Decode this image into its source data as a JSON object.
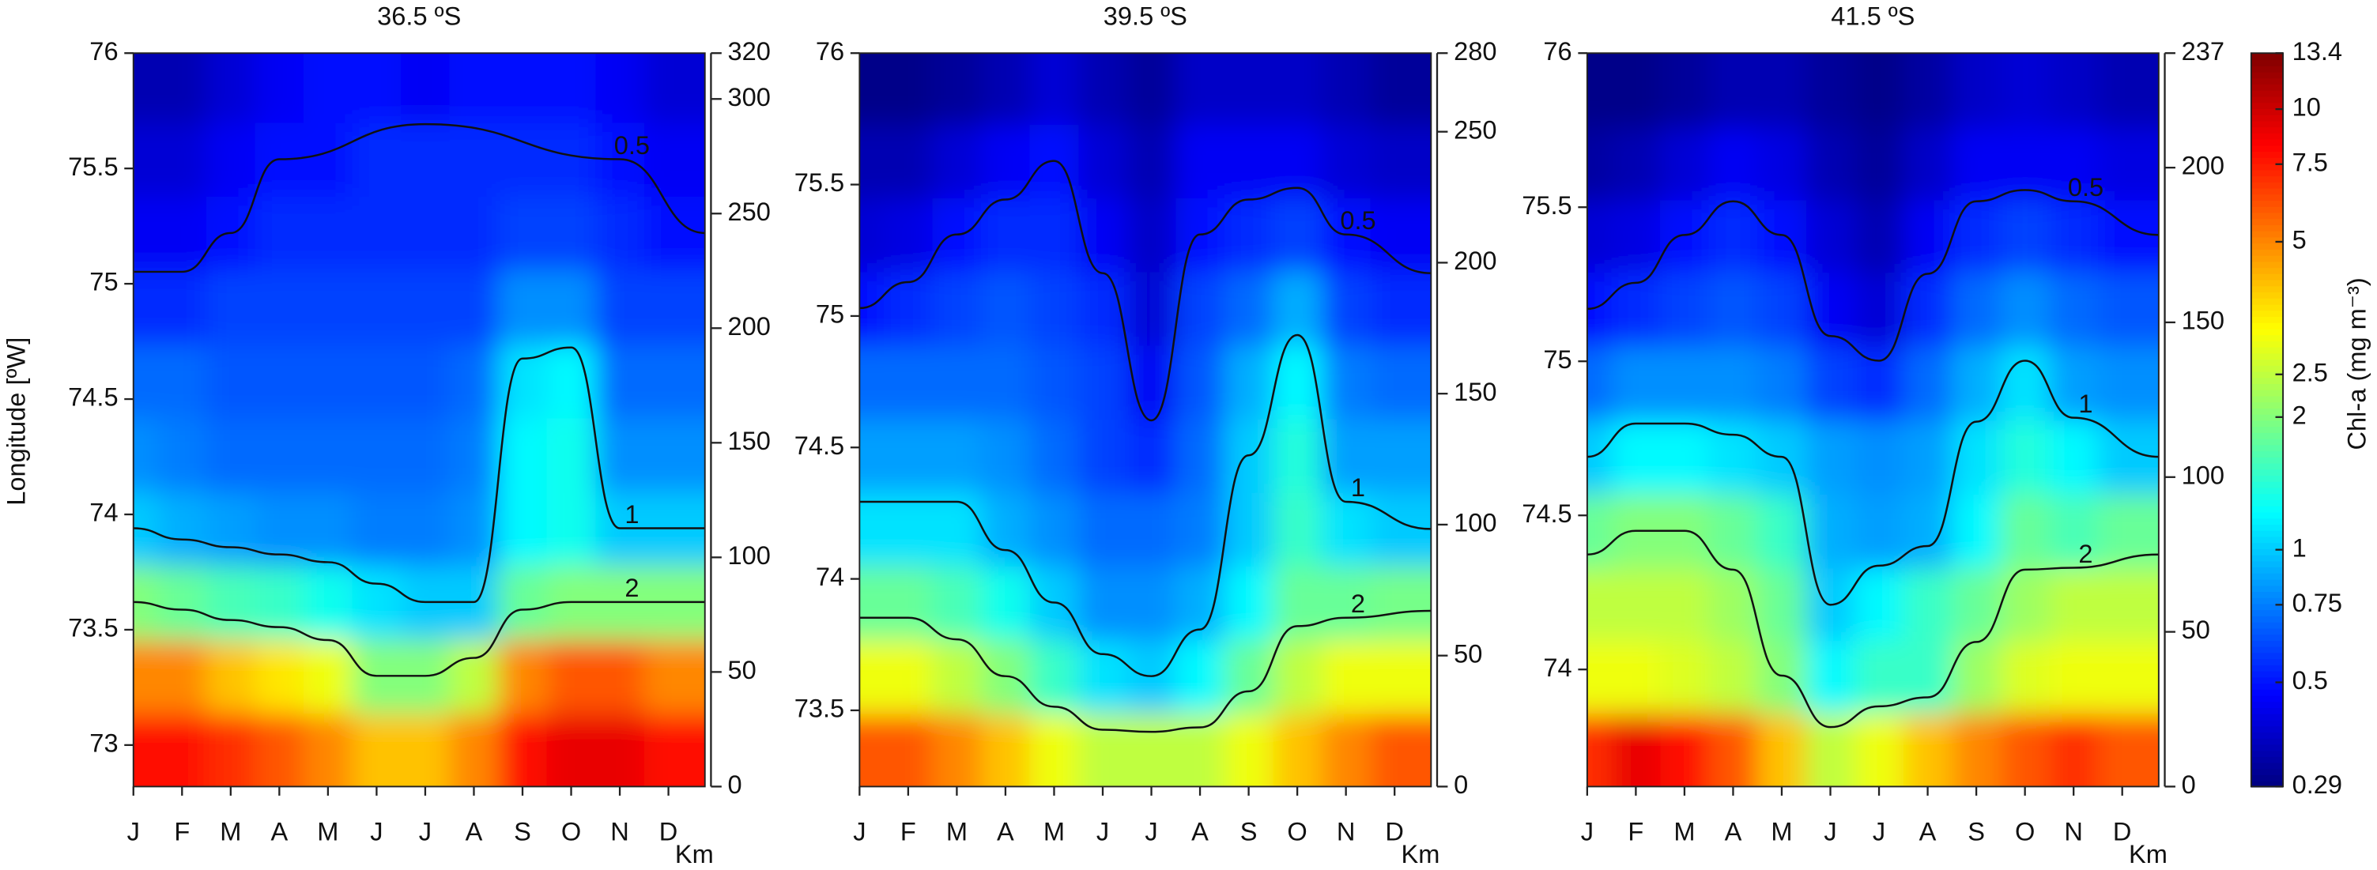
{
  "chart_data": [
    {
      "type": "heatmap",
      "title": "36.5 ºS",
      "ylabel": "Longitude [ºW]",
      "y2label": "Km",
      "categories": [
        "J",
        "F",
        "M",
        "A",
        "M",
        "J",
        "J",
        "A",
        "S",
        "O",
        "N",
        "D"
      ],
      "ylim": [
        72.82,
        76
      ],
      "yticks": [
        73,
        73.5,
        74,
        74.5,
        75,
        75.5,
        76
      ],
      "y2lim": [
        0,
        320
      ],
      "y2ticks": [
        0,
        50,
        100,
        150,
        200,
        250,
        300,
        320
      ],
      "contour_levels": [
        0.5,
        1,
        2
      ],
      "y": [
        72.98,
        73.3,
        73.62,
        73.94,
        74.26,
        74.58,
        74.9,
        75.22,
        75.54,
        75.86
      ],
      "values": [
        [
          8,
          8,
          7,
          6,
          5,
          4,
          4,
          5,
          8,
          9,
          9,
          8
        ],
        [
          5,
          5,
          4,
          3.5,
          3,
          2,
          2,
          2.5,
          5,
          6,
          6,
          5
        ],
        [
          2,
          1.8,
          1.6,
          1.5,
          1.3,
          1.1,
          1,
          1,
          1.8,
          2,
          2,
          2
        ],
        [
          1,
          0.9,
          0.85,
          0.8,
          0.8,
          0.75,
          0.75,
          0.8,
          1.2,
          1.3,
          1,
          1
        ],
        [
          0.8,
          0.75,
          0.7,
          0.7,
          0.7,
          0.7,
          0.7,
          0.75,
          1.2,
          1.3,
          0.8,
          0.8
        ],
        [
          0.7,
          0.7,
          0.65,
          0.65,
          0.65,
          0.65,
          0.65,
          0.7,
          1.1,
          1.2,
          0.7,
          0.7
        ],
        [
          0.55,
          0.55,
          0.6,
          0.6,
          0.6,
          0.6,
          0.6,
          0.6,
          0.8,
          0.8,
          0.6,
          0.6
        ],
        [
          0.45,
          0.45,
          0.5,
          0.55,
          0.55,
          0.55,
          0.55,
          0.55,
          0.6,
          0.6,
          0.55,
          0.5
        ],
        [
          0.4,
          0.4,
          0.45,
          0.5,
          0.5,
          0.55,
          0.55,
          0.55,
          0.55,
          0.55,
          0.5,
          0.45
        ],
        [
          0.35,
          0.35,
          0.4,
          0.45,
          0.5,
          0.5,
          0.45,
          0.5,
          0.5,
          0.5,
          0.45,
          0.4
        ]
      ]
    },
    {
      "type": "heatmap",
      "title": "39.5 ºS",
      "y2label": "Km",
      "categories": [
        "J",
        "F",
        "M",
        "A",
        "M",
        "J",
        "J",
        "A",
        "S",
        "O",
        "N",
        "D"
      ],
      "ylim": [
        73.21,
        76
      ],
      "yticks": [
        73.5,
        74,
        74.5,
        75,
        75.5,
        76
      ],
      "y2lim": [
        0,
        280
      ],
      "y2ticks": [
        0,
        50,
        100,
        150,
        200,
        250,
        280
      ],
      "contour_levels": [
        0.5,
        1,
        2
      ],
      "y": [
        73.35,
        73.63,
        73.91,
        74.19,
        74.47,
        74.75,
        75.03,
        75.31,
        75.59,
        75.87
      ],
      "values": [
        [
          6,
          6,
          5,
          4,
          3,
          2.5,
          2.5,
          2.5,
          3,
          4,
          5,
          6
        ],
        [
          3,
          3,
          2.5,
          2,
          1.5,
          1.1,
          1,
          1.2,
          1.8,
          2.5,
          3,
          3
        ],
        [
          1.8,
          1.8,
          1.6,
          1.3,
          1,
          0.8,
          0.8,
          0.9,
          1.2,
          1.8,
          1.8,
          1.9
        ],
        [
          1.1,
          1.1,
          1.1,
          0.9,
          0.8,
          0.7,
          0.7,
          0.75,
          1,
          1.5,
          1.1,
          1
        ],
        [
          0.85,
          0.85,
          0.85,
          0.8,
          0.7,
          0.6,
          0.55,
          0.7,
          1,
          1.4,
          0.85,
          0.85
        ],
        [
          0.7,
          0.7,
          0.7,
          0.7,
          0.65,
          0.6,
          0.45,
          0.65,
          0.9,
          1.2,
          0.75,
          0.7
        ],
        [
          0.5,
          0.55,
          0.6,
          0.65,
          0.6,
          0.55,
          0.4,
          0.6,
          0.7,
          0.9,
          0.6,
          0.55
        ],
        [
          0.4,
          0.42,
          0.5,
          0.55,
          0.55,
          0.45,
          0.38,
          0.5,
          0.55,
          0.6,
          0.5,
          0.45
        ],
        [
          0.35,
          0.35,
          0.4,
          0.45,
          0.5,
          0.4,
          0.35,
          0.45,
          0.45,
          0.45,
          0.4,
          0.38
        ],
        [
          0.3,
          0.3,
          0.32,
          0.35,
          0.4,
          0.35,
          0.32,
          0.38,
          0.38,
          0.38,
          0.35,
          0.32
        ]
      ]
    },
    {
      "type": "heatmap",
      "title": "41.5 ºS",
      "y2label": "Km",
      "categories": [
        "J",
        "F",
        "M",
        "A",
        "M",
        "J",
        "J",
        "A",
        "S",
        "O",
        "N",
        "D"
      ],
      "ylim": [
        73.62,
        76
      ],
      "yticks": [
        74,
        74.5,
        75,
        75.5,
        76
      ],
      "y2lim": [
        0,
        237
      ],
      "y2ticks": [
        0,
        50,
        100,
        150,
        200,
        237
      ],
      "contour_levels": [
        0.5,
        1,
        2
      ],
      "y": [
        73.74,
        73.98,
        74.21,
        74.45,
        74.69,
        74.93,
        75.17,
        75.41,
        75.64,
        75.88
      ],
      "values": [
        [
          7,
          9,
          8,
          6,
          4,
          2.5,
          3,
          4,
          5,
          6,
          7,
          6
        ],
        [
          3,
          3,
          2.8,
          2.5,
          2,
          1.2,
          1.5,
          1.5,
          2.2,
          2.8,
          3,
          3
        ],
        [
          2.5,
          2.5,
          2.5,
          2.2,
          1.8,
          1,
          1.2,
          1.5,
          1.8,
          2.2,
          2.5,
          2.5
        ],
        [
          1.8,
          2,
          2,
          1.8,
          1.5,
          0.9,
          0.85,
          0.9,
          1.2,
          1.8,
          1.6,
          1.8
        ],
        [
          1,
          1.2,
          1.2,
          1.1,
          1,
          0.85,
          0.8,
          0.85,
          1.1,
          1.4,
          1.2,
          1
        ],
        [
          0.7,
          0.8,
          0.8,
          0.8,
          0.75,
          0.6,
          0.55,
          0.7,
          0.9,
          1.1,
          0.85,
          0.8
        ],
        [
          0.5,
          0.55,
          0.6,
          0.65,
          0.6,
          0.45,
          0.4,
          0.55,
          0.7,
          0.8,
          0.7,
          0.65
        ],
        [
          0.4,
          0.42,
          0.5,
          0.55,
          0.5,
          0.4,
          0.35,
          0.45,
          0.55,
          0.6,
          0.55,
          0.5
        ],
        [
          0.33,
          0.35,
          0.4,
          0.45,
          0.42,
          0.35,
          0.32,
          0.38,
          0.45,
          0.45,
          0.45,
          0.42
        ],
        [
          0.3,
          0.3,
          0.32,
          0.35,
          0.35,
          0.32,
          0.3,
          0.33,
          0.38,
          0.4,
          0.38,
          0.35
        ]
      ]
    }
  ],
  "colorbar": {
    "label": "Chl-a (mg m⁻³)",
    "log": true,
    "lim": [
      0.29,
      13.4
    ],
    "ticks": [
      0.29,
      0.5,
      0.75,
      1,
      2,
      2.5,
      5,
      7.5,
      10,
      13.4
    ]
  }
}
